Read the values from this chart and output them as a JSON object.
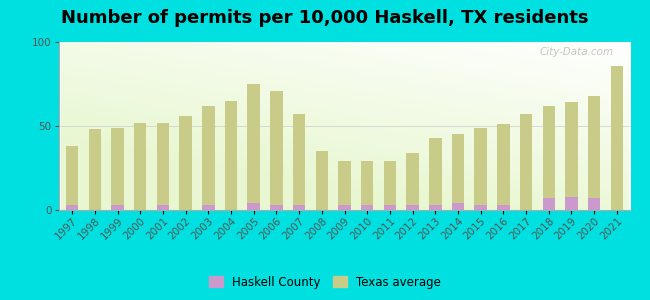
{
  "title": "Number of permits per 10,000 Haskell, TX residents",
  "years": [
    1997,
    1998,
    1999,
    2000,
    2001,
    2002,
    2003,
    2004,
    2005,
    2006,
    2007,
    2008,
    2009,
    2010,
    2011,
    2012,
    2013,
    2014,
    2015,
    2016,
    2017,
    2018,
    2019,
    2020,
    2021
  ],
  "haskell_values": [
    3,
    0,
    3,
    0,
    3,
    0,
    3,
    0,
    4,
    3,
    3,
    0,
    3,
    3,
    3,
    3,
    3,
    4,
    3,
    3,
    0,
    7,
    8,
    7,
    0
  ],
  "texas_values": [
    38,
    48,
    49,
    52,
    52,
    56,
    62,
    65,
    75,
    71,
    57,
    35,
    29,
    29,
    29,
    34,
    43,
    45,
    49,
    51,
    57,
    62,
    64,
    68,
    86
  ],
  "haskell_color": "#cc99cc",
  "texas_color": "#c8cc88",
  "outer_background": "#00e0e0",
  "ylim": [
    0,
    100
  ],
  "yticks": [
    0,
    50,
    100
  ],
  "title_fontsize": 13,
  "tick_fontsize": 7.5,
  "legend_haskell": "Haskell County",
  "legend_texas": "Texas average",
  "bar_width": 0.55
}
